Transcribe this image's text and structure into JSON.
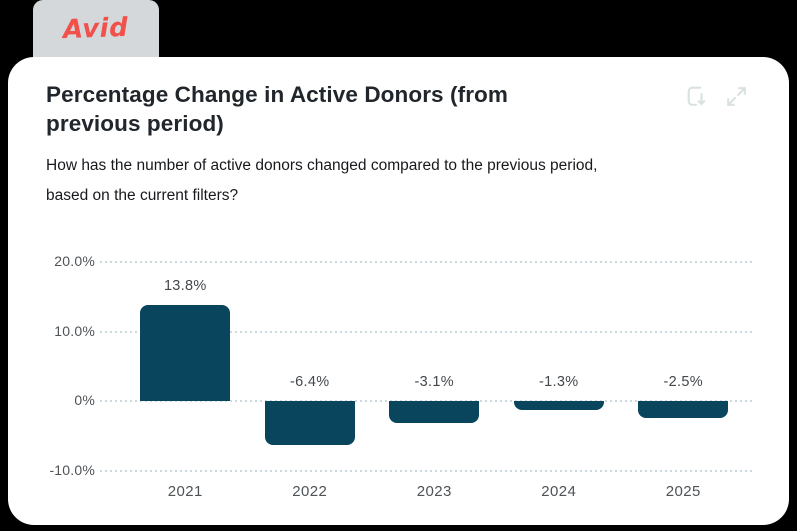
{
  "brand": {
    "tab_label": "Avid",
    "tab_bg": "#d4d8db",
    "brand_color": "#f2504b"
  },
  "card": {
    "title": "Percentage Change in Active Donors (from previous period)",
    "title_lines": [
      "Percentage Change in Active Donors (from",
      "previous period)"
    ],
    "subtitle": "How has the number of active donors changed compared to the previous period, based on the current filters?",
    "subtitle_lines": [
      "How has the number of active donors changed compared to the previous period,",
      "based on the current filters?"
    ],
    "icons": [
      {
        "name": "download-chart-icon"
      },
      {
        "name": "expand-chart-icon"
      }
    ],
    "icon_color": "#d9e2dc"
  },
  "chart_data": {
    "type": "bar",
    "title": "Percentage Change in Active Donors (from previous period)",
    "categories": [
      "2021",
      "2022",
      "2023",
      "2024",
      "2025"
    ],
    "values": [
      13.8,
      -6.4,
      -3.1,
      -1.3,
      -2.5
    ],
    "value_labels": [
      "13.8%",
      "-6.4%",
      "-3.1%",
      "-1.3%",
      "-2.5%"
    ],
    "y_ticks": [
      "20.0%",
      "10.0%",
      "0%",
      "-10.0%"
    ],
    "y_tick_values": [
      20,
      10,
      0,
      -10
    ],
    "ylim": [
      -10,
      20
    ],
    "xlabel": "",
    "ylabel": "",
    "bar_color": "#0a455e",
    "gridline_color": "#ccd9de",
    "grid": "horizontal-dotted",
    "legend": "none"
  }
}
